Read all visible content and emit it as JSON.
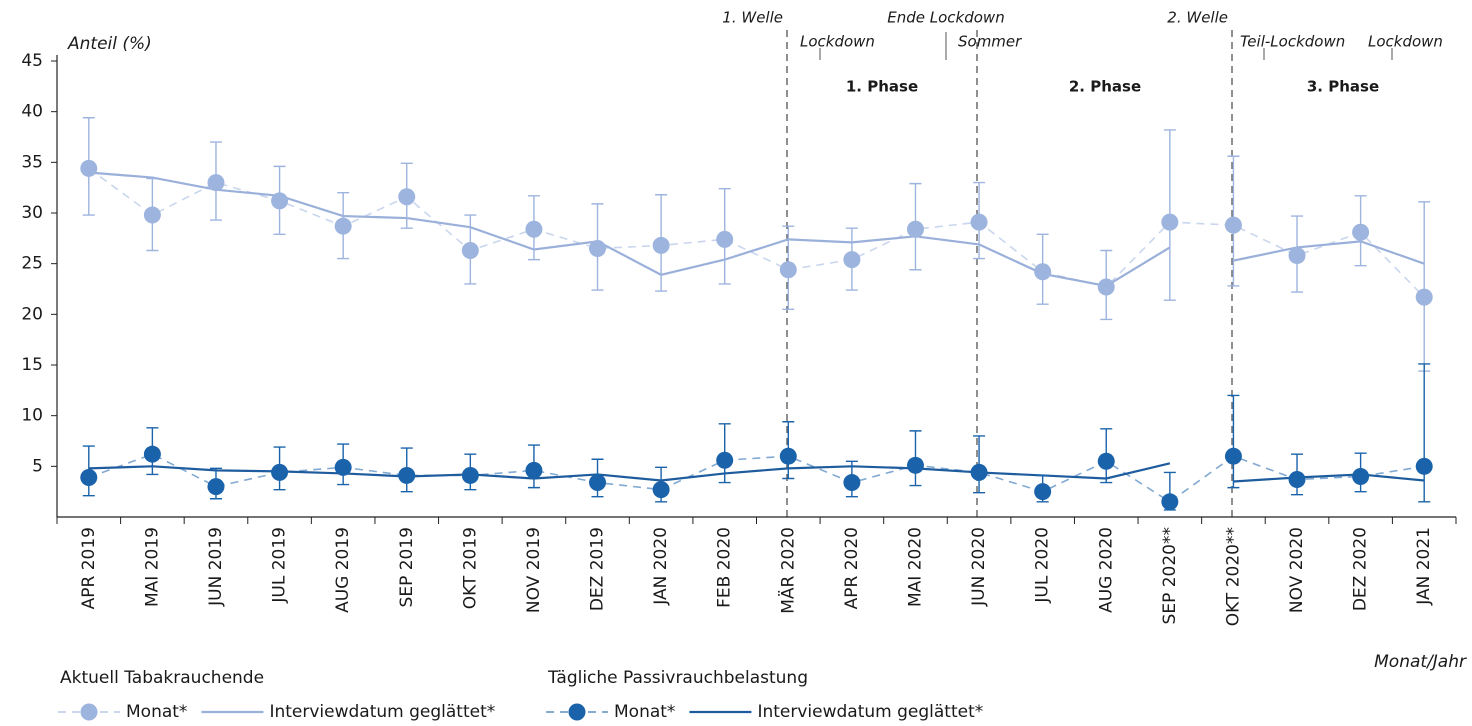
{
  "chart_data": {
    "type": "line",
    "y_label": "Anteil (%)",
    "x_label": "Monat/Jahr",
    "categories": [
      "APR 2019",
      "MAI 2019",
      "JUN 2019",
      "JUL 2019",
      "AUG 2019",
      "SEP 2019",
      "OKT 2019",
      "NOV 2019",
      "DEZ 2019",
      "JAN 2020",
      "FEB 2020",
      "MÄR 2020",
      "APR 2020",
      "MAI 2020",
      "JUN 2020",
      "JUL 2020",
      "AUG 2020",
      "SEP 2020**",
      "OKT 2020**",
      "NOV 2020",
      "DEZ 2020",
      "JAN 2021"
    ],
    "ylim": [
      0,
      45
    ],
    "yticks": [
      5,
      10,
      15,
      20,
      25,
      30,
      35,
      40,
      45
    ],
    "legend_groups": [
      "Aktuell Tabakrauchende",
      "Tägliche Passivrauchbelastung"
    ],
    "series": [
      {
        "name": "Monat*",
        "group": 0,
        "style": "dashed-dots",
        "color": "#9db4de",
        "values": [
          34.4,
          29.8,
          33.0,
          31.2,
          28.7,
          31.6,
          26.3,
          28.4,
          26.5,
          26.8,
          27.4,
          24.4,
          25.4,
          28.4,
          29.1,
          24.2,
          22.7,
          29.1,
          28.8,
          25.8,
          28.1,
          21.7
        ],
        "ci_low": [
          29.8,
          26.3,
          29.3,
          27.9,
          25.5,
          28.5,
          23.0,
          25.4,
          22.4,
          22.3,
          23.0,
          20.5,
          22.4,
          24.4,
          25.5,
          21.0,
          19.5,
          21.4,
          22.8,
          22.2,
          24.8,
          14.4
        ],
        "ci_high": [
          39.4,
          33.4,
          37.0,
          34.6,
          32.0,
          34.9,
          29.8,
          31.7,
          30.9,
          31.8,
          32.4,
          28.7,
          28.5,
          32.9,
          33.0,
          27.9,
          26.3,
          38.2,
          35.6,
          29.7,
          31.7,
          31.1
        ]
      },
      {
        "name": "Interviewdatum geglättet*",
        "group": 0,
        "style": "solid",
        "color": "#9ab0da",
        "break_before": 18,
        "values": [
          34.0,
          33.5,
          32.3,
          31.7,
          29.7,
          29.5,
          28.6,
          26.4,
          27.2,
          23.9,
          25.4,
          27.4,
          27.1,
          27.7,
          26.9,
          24.0,
          22.8,
          26.6,
          25.3,
          26.6,
          27.2,
          25.0
        ]
      },
      {
        "name": "Monat*",
        "group": 1,
        "style": "dashed-dots",
        "color": "#1a63ab",
        "values": [
          3.9,
          6.2,
          3.0,
          4.4,
          4.9,
          4.1,
          4.1,
          4.6,
          3.4,
          2.7,
          5.6,
          6.0,
          3.4,
          5.1,
          4.4,
          2.5,
          5.5,
          1.5,
          6.0,
          3.7,
          4.0,
          5.0
        ],
        "ci_low": [
          2.1,
          4.2,
          1.8,
          2.7,
          3.2,
          2.5,
          2.7,
          2.9,
          2.0,
          1.5,
          3.4,
          3.8,
          2.0,
          3.1,
          2.4,
          1.5,
          3.4,
          0.7,
          2.9,
          2.2,
          2.5,
          1.5
        ],
        "ci_high": [
          7.0,
          8.8,
          4.8,
          6.9,
          7.2,
          6.8,
          6.2,
          7.1,
          5.7,
          4.9,
          9.2,
          9.4,
          5.5,
          8.5,
          8.0,
          4.1,
          8.7,
          4.4,
          12.0,
          6.2,
          6.3,
          15.1
        ]
      },
      {
        "name": "Interviewdatum geglättet*",
        "group": 1,
        "style": "solid",
        "color": "#1e5c9e",
        "break_before": 18,
        "values": [
          4.8,
          5.0,
          4.6,
          4.5,
          4.3,
          4.0,
          4.2,
          3.8,
          4.2,
          3.6,
          4.3,
          4.8,
          5.0,
          4.8,
          4.4,
          4.1,
          3.8,
          5.3,
          3.5,
          3.9,
          4.2,
          3.6
        ]
      }
    ],
    "annotations": {
      "welle1": "1. Welle",
      "lockdown1": "Lockdown",
      "ende": "Ende Lockdown",
      "sommer": "Sommer",
      "welle2": "2. Welle",
      "teil": "Teil-Lockdown",
      "lockdown2": "Lockdown",
      "phase1": "1. Phase",
      "phase2": "2. Phase",
      "phase3": "3. Phase"
    }
  }
}
